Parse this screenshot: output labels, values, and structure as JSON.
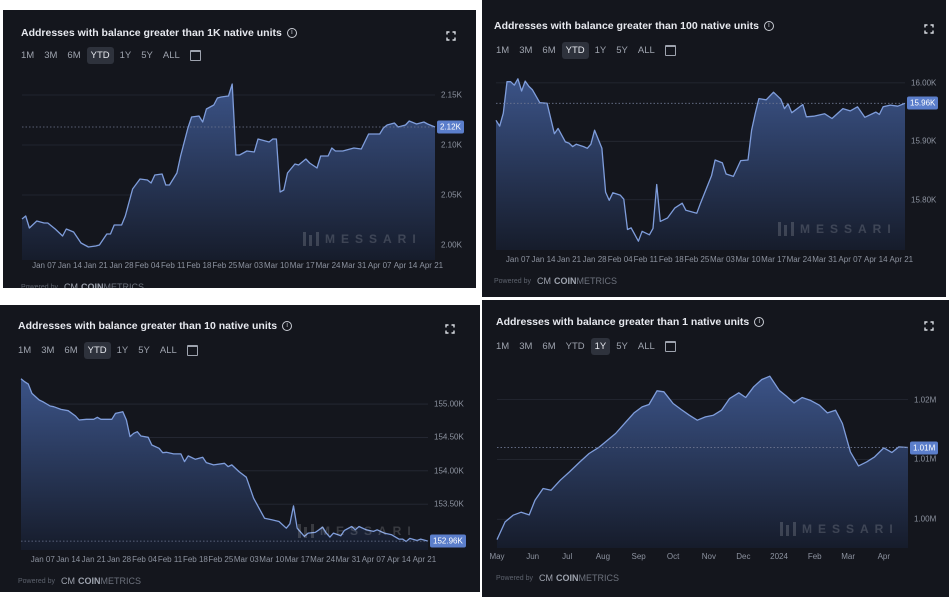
{
  "ranges": [
    "1M",
    "3M",
    "6M",
    "YTD",
    "1Y",
    "5Y",
    "ALL"
  ],
  "icons": {
    "info": "info-icon",
    "expand": "expand-icon",
    "calendar": "calendar-icon"
  },
  "watermark": "MESSARI",
  "powered_by": "Powered by",
  "coinmetrics": {
    "mark": "CM",
    "bold": "COIN",
    "light": "METRICS"
  },
  "colors": {
    "background": "#14161d",
    "line": "#7f9ddb",
    "fill_top": "#3b5387",
    "fill_bottom": "#161c2b",
    "value_badge": "#5b7ecb",
    "selected_range": "#2e323c"
  },
  "panels": [
    {
      "title": "Addresses with balance greater than 1K native units",
      "selected_range": "YTD"
    },
    {
      "title": "Addresses with balance greater than 100 native units",
      "selected_range": "YTD"
    },
    {
      "title": "Addresses with balance greater than 10 native units",
      "selected_range": "YTD"
    },
    {
      "title": "Addresses with balance greater than 1 native units",
      "selected_range": "1Y"
    }
  ],
  "chart_data": [
    {
      "type": "area",
      "title": "Addresses with balance greater than 1K native units",
      "ylim": [
        1985,
        2165
      ],
      "grid": true,
      "current_value_label": "2.12K",
      "yticks": [
        {
          "value": 2150,
          "label": "2.15K"
        },
        {
          "value": 2100,
          "label": "2.10K"
        },
        {
          "value": 2050,
          "label": "2.05K"
        },
        {
          "value": 2000,
          "label": "2.00K"
        }
      ],
      "xticks": [
        {
          "date": "2024-01-07",
          "label": "Jan 07"
        },
        {
          "date": "2024-01-14",
          "label": "Jan 14"
        },
        {
          "date": "2024-01-21",
          "label": "Jan 21"
        },
        {
          "date": "2024-01-28",
          "label": "Jan 28"
        },
        {
          "date": "2024-02-04",
          "label": "Feb 04"
        },
        {
          "date": "2024-02-11",
          "label": "Feb 11"
        },
        {
          "date": "2024-02-18",
          "label": "Feb 18"
        },
        {
          "date": "2024-02-25",
          "label": "Feb 25"
        },
        {
          "date": "2024-03-03",
          "label": "Mar 03"
        },
        {
          "date": "2024-03-10",
          "label": "Mar 10"
        },
        {
          "date": "2024-03-17",
          "label": "Mar 17"
        },
        {
          "date": "2024-03-24",
          "label": "Mar 24"
        },
        {
          "date": "2024-03-31",
          "label": "Mar 31"
        },
        {
          "date": "2024-04-07",
          "label": "Apr 07"
        },
        {
          "date": "2024-04-14",
          "label": "Apr 14"
        },
        {
          "date": "2024-04-21",
          "label": "Apr 21"
        }
      ],
      "x": [
        "2024-01-01",
        "2024-01-02",
        "2024-01-03",
        "2024-01-05",
        "2024-01-07",
        "2024-01-08",
        "2024-01-10",
        "2024-01-12",
        "2024-01-13",
        "2024-01-15",
        "2024-01-17",
        "2024-01-19",
        "2024-01-21",
        "2024-01-22",
        "2024-01-24",
        "2024-01-25",
        "2024-01-26",
        "2024-01-28",
        "2024-01-29",
        "2024-01-31",
        "2024-02-02",
        "2024-02-04",
        "2024-02-05",
        "2024-02-06",
        "2024-02-08",
        "2024-02-09",
        "2024-02-10",
        "2024-02-12",
        "2024-02-13",
        "2024-02-15",
        "2024-02-16",
        "2024-02-18",
        "2024-02-19",
        "2024-02-20",
        "2024-02-22",
        "2024-02-23",
        "2024-02-24",
        "2024-02-26",
        "2024-02-27",
        "2024-02-28",
        "2024-02-29",
        "2024-03-02",
        "2024-03-04",
        "2024-03-05",
        "2024-03-08",
        "2024-03-09",
        "2024-03-10",
        "2024-03-11",
        "2024-03-12",
        "2024-03-13",
        "2024-03-15",
        "2024-03-16",
        "2024-03-18",
        "2024-03-19",
        "2024-03-21",
        "2024-03-22",
        "2024-03-24",
        "2024-03-25",
        "2024-03-26",
        "2024-03-28",
        "2024-03-30",
        "2024-03-31",
        "2024-04-02",
        "2024-04-04",
        "2024-04-05",
        "2024-04-07",
        "2024-04-08",
        "2024-04-09",
        "2024-04-11",
        "2024-04-12",
        "2024-04-14",
        "2024-04-15",
        "2024-04-17",
        "2024-04-19",
        "2024-04-20",
        "2024-04-22"
      ],
      "y": [
        2026,
        2029,
        2017,
        2024,
        2022,
        2022,
        2016,
        2009,
        2016,
        2013,
        2002,
        1998,
        1999,
        2000,
        2011,
        2011,
        2020,
        2020,
        2029,
        2056,
        2066,
        2065,
        2062,
        2070,
        2071,
        2060,
        2060,
        2072,
        2089,
        2117,
        2128,
        2129,
        2123,
        2136,
        2140,
        2147,
        2148,
        2149,
        2161,
        2090,
        2090,
        2094,
        2093,
        2106,
        2103,
        2106,
        2106,
        2053,
        2055,
        2072,
        2081,
        2080,
        2086,
        2082,
        2077,
        2089,
        2089,
        2097,
        2094,
        2094,
        2096,
        2097,
        2096,
        2111,
        2111,
        2111,
        2117,
        2120,
        2122,
        2118,
        2120,
        2124,
        2121,
        2123,
        2121,
        2118
      ]
    },
    {
      "type": "area",
      "title": "Addresses with balance greater than 100 native units",
      "ylim": [
        15714,
        16022
      ],
      "grid": true,
      "current_value_label": "15.96K",
      "yticks": [
        {
          "value": 16000,
          "label": "16.00K"
        },
        {
          "value": 15900,
          "label": "15.90K"
        },
        {
          "value": 15800,
          "label": "15.80K"
        }
      ],
      "xticks": [
        {
          "date": "2024-01-07",
          "label": "Jan 07"
        },
        {
          "date": "2024-01-14",
          "label": "Jan 14"
        },
        {
          "date": "2024-01-21",
          "label": "Jan 21"
        },
        {
          "date": "2024-01-28",
          "label": "Jan 28"
        },
        {
          "date": "2024-02-04",
          "label": "Feb 04"
        },
        {
          "date": "2024-02-11",
          "label": "Feb 11"
        },
        {
          "date": "2024-02-18",
          "label": "Feb 18"
        },
        {
          "date": "2024-02-25",
          "label": "Feb 25"
        },
        {
          "date": "2024-03-03",
          "label": "Mar 03"
        },
        {
          "date": "2024-03-10",
          "label": "Mar 10"
        },
        {
          "date": "2024-03-17",
          "label": "Mar 17"
        },
        {
          "date": "2024-03-24",
          "label": "Mar 24"
        },
        {
          "date": "2024-03-31",
          "label": "Mar 31"
        },
        {
          "date": "2024-04-07",
          "label": "Apr 07"
        },
        {
          "date": "2024-04-14",
          "label": "Apr 14"
        },
        {
          "date": "2024-04-21",
          "label": "Apr 21"
        }
      ],
      "x": [
        "2024-01-01",
        "2024-01-02",
        "2024-01-03",
        "2024-01-04",
        "2024-01-05",
        "2024-01-06",
        "2024-01-07",
        "2024-01-08",
        "2024-01-09",
        "2024-01-10",
        "2024-01-11",
        "2024-01-13",
        "2024-01-15",
        "2024-01-17",
        "2024-01-18",
        "2024-01-20",
        "2024-01-21",
        "2024-01-22",
        "2024-01-23",
        "2024-01-25",
        "2024-01-26",
        "2024-01-27",
        "2024-01-28",
        "2024-01-30",
        "2024-01-31",
        "2024-02-01",
        "2024-02-02",
        "2024-02-04",
        "2024-02-05",
        "2024-02-06",
        "2024-02-07",
        "2024-02-09",
        "2024-02-10",
        "2024-02-12",
        "2024-02-13",
        "2024-02-14",
        "2024-02-15",
        "2024-02-17",
        "2024-02-19",
        "2024-02-21",
        "2024-02-22",
        "2024-02-25",
        "2024-02-26",
        "2024-02-29",
        "2024-03-01",
        "2024-03-03",
        "2024-03-04",
        "2024-03-06",
        "2024-03-08",
        "2024-03-10",
        "2024-03-11",
        "2024-03-12",
        "2024-03-13",
        "2024-03-15",
        "2024-03-17",
        "2024-03-19",
        "2024-03-20",
        "2024-03-21",
        "2024-03-22",
        "2024-03-25",
        "2024-03-26",
        "2024-03-28",
        "2024-03-31",
        "2024-04-02",
        "2024-04-05",
        "2024-04-07",
        "2024-04-09",
        "2024-04-11",
        "2024-04-14",
        "2024-04-15",
        "2024-04-16",
        "2024-04-18",
        "2024-04-20",
        "2024-04-22"
      ],
      "y": [
        15936,
        15926,
        15948,
        16002,
        16002,
        15996,
        16007,
        15986,
        16003,
        15994,
        15988,
        15966,
        15965,
        15913,
        15922,
        15899,
        15897,
        15891,
        15895,
        15891,
        15888,
        15895,
        15919,
        15888,
        15813,
        15799,
        15812,
        15808,
        15801,
        15749,
        15752,
        15729,
        15746,
        15740,
        15751,
        15826,
        15763,
        15769,
        15786,
        15794,
        15782,
        15777,
        15794,
        15841,
        15868,
        15863,
        15844,
        15840,
        15867,
        15868,
        15919,
        15948,
        15973,
        15971,
        15984,
        15972,
        15956,
        15964,
        15949,
        15963,
        15942,
        15943,
        15947,
        15939,
        15956,
        15952,
        15959,
        15941,
        15950,
        15946,
        15959,
        15962,
        15960,
        15965
      ]
    },
    {
      "type": "area",
      "title": "Addresses with balance greater than 10 native units",
      "ylim": [
        152814,
        155435
      ],
      "grid": true,
      "current_value_label": "152.96K",
      "yticks": [
        {
          "value": 155000,
          "label": "155.00K"
        },
        {
          "value": 154500,
          "label": "154.50K"
        },
        {
          "value": 154000,
          "label": "154.00K"
        },
        {
          "value": 153500,
          "label": "153.50K"
        }
      ],
      "xticks": [
        {
          "date": "2024-01-07",
          "label": "Jan 07"
        },
        {
          "date": "2024-01-14",
          "label": "Jan 14"
        },
        {
          "date": "2024-01-21",
          "label": "Jan 21"
        },
        {
          "date": "2024-01-28",
          "label": "Jan 28"
        },
        {
          "date": "2024-02-04",
          "label": "Feb 04"
        },
        {
          "date": "2024-02-11",
          "label": "Feb 11"
        },
        {
          "date": "2024-02-18",
          "label": "Feb 18"
        },
        {
          "date": "2024-02-25",
          "label": "Feb 25"
        },
        {
          "date": "2024-03-03",
          "label": "Mar 03"
        },
        {
          "date": "2024-03-10",
          "label": "Mar 10"
        },
        {
          "date": "2024-03-17",
          "label": "Mar 17"
        },
        {
          "date": "2024-03-24",
          "label": "Mar 24"
        },
        {
          "date": "2024-03-31",
          "label": "Mar 31"
        },
        {
          "date": "2024-04-07",
          "label": "Apr 07"
        },
        {
          "date": "2024-04-14",
          "label": "Apr 14"
        },
        {
          "date": "2024-04-21",
          "label": "Apr 21"
        }
      ],
      "x": [
        "2024-01-01",
        "2024-01-02",
        "2024-01-03",
        "2024-01-04",
        "2024-01-06",
        "2024-01-07",
        "2024-01-09",
        "2024-01-10",
        "2024-01-12",
        "2024-01-14",
        "2024-01-16",
        "2024-01-17",
        "2024-01-19",
        "2024-01-21",
        "2024-01-22",
        "2024-01-23",
        "2024-01-26",
        "2024-01-27",
        "2024-01-29",
        "2024-01-30",
        "2024-01-31",
        "2024-02-01",
        "2024-02-02",
        "2024-02-03",
        "2024-02-05",
        "2024-02-06",
        "2024-02-08",
        "2024-02-09",
        "2024-02-10",
        "2024-02-12",
        "2024-02-14",
        "2024-02-15",
        "2024-02-16",
        "2024-02-18",
        "2024-02-20",
        "2024-02-21",
        "2024-02-23",
        "2024-02-26",
        "2024-02-27",
        "2024-02-28",
        "2024-03-01",
        "2024-03-03",
        "2024-03-05",
        "2024-03-08",
        "2024-03-10",
        "2024-03-12",
        "2024-03-14",
        "2024-03-15",
        "2024-03-16",
        "2024-03-17",
        "2024-03-19",
        "2024-03-20",
        "2024-03-22",
        "2024-03-23",
        "2024-03-24",
        "2024-03-25",
        "2024-03-26",
        "2024-03-27",
        "2024-03-29",
        "2024-03-30",
        "2024-04-01",
        "2024-04-02",
        "2024-04-03",
        "2024-04-05",
        "2024-04-07",
        "2024-04-08",
        "2024-04-10",
        "2024-04-12",
        "2024-04-14",
        "2024-04-15",
        "2024-04-16",
        "2024-04-17",
        "2024-04-19",
        "2024-04-20",
        "2024-04-22"
      ],
      "y": [
        155379,
        155334,
        155299,
        155159,
        155060,
        155035,
        154970,
        154960,
        154920,
        154900,
        154821,
        154761,
        154771,
        154771,
        154801,
        154771,
        154771,
        154860,
        154885,
        154761,
        154512,
        154562,
        154586,
        154522,
        154502,
        154387,
        154337,
        154272,
        154277,
        154253,
        154253,
        154138,
        154223,
        154173,
        154203,
        154123,
        154088,
        154113,
        154063,
        154088,
        153988,
        153904,
        153590,
        153291,
        153266,
        153241,
        153141,
        153206,
        153475,
        153141,
        153017,
        153067,
        153077,
        153117,
        153157,
        153067,
        153007,
        153067,
        153027,
        153107,
        153166,
        153117,
        153166,
        153117,
        153092,
        153117,
        153067,
        153042,
        152977,
        152977,
        152942,
        152987,
        152957,
        152977,
        152947
      ]
    },
    {
      "type": "area",
      "title": "Addresses with balance greater than 1 native units",
      "ylim": [
        995200,
        1026600
      ],
      "grid": true,
      "current_value_label": "1.01M",
      "yticks": [
        {
          "value": 1020000,
          "label": "1.02M"
        },
        {
          "value": 1010000,
          "label": "1.01M"
        },
        {
          "value": 1000000,
          "label": "1.00M"
        }
      ],
      "xticks": [
        {
          "date": "2023-05-01",
          "label": "May"
        },
        {
          "date": "2023-06-01",
          "label": "Jun"
        },
        {
          "date": "2023-07-01",
          "label": "Jul"
        },
        {
          "date": "2023-08-01",
          "label": "Aug"
        },
        {
          "date": "2023-09-01",
          "label": "Sep"
        },
        {
          "date": "2023-10-01",
          "label": "Oct"
        },
        {
          "date": "2023-11-01",
          "label": "Nov"
        },
        {
          "date": "2023-12-01",
          "label": "Dec"
        },
        {
          "date": "2024-01-01",
          "label": "2024"
        },
        {
          "date": "2024-02-01",
          "label": "Feb"
        },
        {
          "date": "2024-03-01",
          "label": "Mar"
        },
        {
          "date": "2024-04-01",
          "label": "Apr"
        }
      ],
      "x": [
        "2023-05-01",
        "2023-05-08",
        "2023-05-15",
        "2023-05-22",
        "2023-05-29",
        "2023-06-03",
        "2023-06-10",
        "2023-06-17",
        "2023-06-25",
        "2023-07-03",
        "2023-07-12",
        "2023-07-20",
        "2023-07-29",
        "2023-08-05",
        "2023-08-12",
        "2023-08-21",
        "2023-08-28",
        "2023-09-04",
        "2023-09-10",
        "2023-09-17",
        "2023-09-23",
        "2023-10-01",
        "2023-10-08",
        "2023-10-15",
        "2023-10-22",
        "2023-10-29",
        "2023-11-05",
        "2023-11-12",
        "2023-11-19",
        "2023-11-27",
        "2023-12-03",
        "2023-12-10",
        "2023-12-17",
        "2023-12-24",
        "2024-01-01",
        "2024-01-08",
        "2024-01-14",
        "2024-01-21",
        "2024-01-28",
        "2024-02-05",
        "2024-02-12",
        "2024-02-19",
        "2024-02-25",
        "2024-03-03",
        "2024-03-10",
        "2024-03-17",
        "2024-03-24",
        "2024-04-01",
        "2024-04-08",
        "2024-04-14",
        "2024-04-22"
      ],
      "y": [
        996606,
        999558,
        1000672,
        1001173,
        1000728,
        1003179,
        1005130,
        1004852,
        1006520,
        1007913,
        1009584,
        1010976,
        1012090,
        1013205,
        1014319,
        1016268,
        1017772,
        1018775,
        1019165,
        1021448,
        1021281,
        1019332,
        1018329,
        1017382,
        1016547,
        1017104,
        1017382,
        1018218,
        1020167,
        1021114,
        1020334,
        1022117,
        1023342,
        1023899,
        1021560,
        1020446,
        1019443,
        1020334,
        1019889,
        1019053,
        1017772,
        1018218,
        1015990,
        1011255,
        1008915,
        1009584,
        1010419,
        1011923,
        1011144,
        1012090,
        1011979
      ]
    }
  ]
}
